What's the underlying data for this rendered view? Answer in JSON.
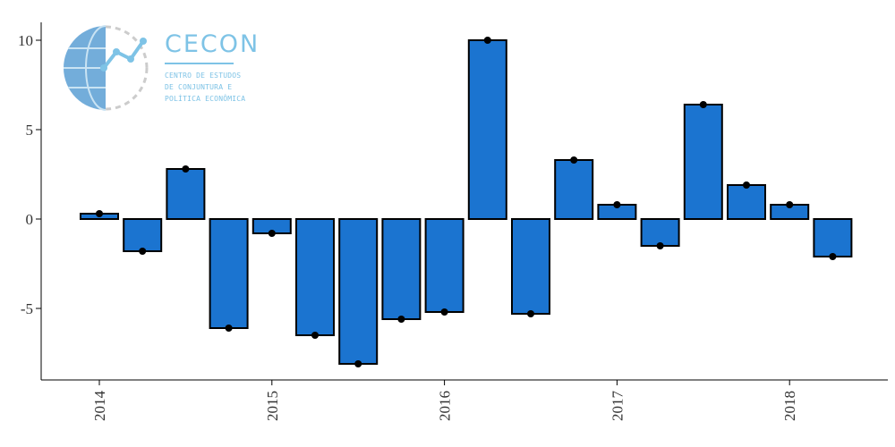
{
  "logo": {
    "title": "CECON",
    "line1": "CENTRO DE ESTUDOS",
    "line2": "DE CONJUNTURA E",
    "line3": "POLÍTICA ECONÔMICA"
  },
  "colors": {
    "bar_fill": "#1b74d0",
    "bar_stroke": "#000000",
    "logo_accent": "#7ec3e6",
    "logo_globe": "#5b9fd3"
  },
  "chart_data": {
    "type": "bar",
    "x_tick_labels": [
      "2014",
      "2015",
      "2016",
      "2017",
      "2018"
    ],
    "x_tick_positions": [
      0,
      4,
      8,
      12,
      16
    ],
    "values": [
      0.3,
      -1.8,
      2.8,
      -6.1,
      -0.8,
      -6.5,
      -8.1,
      -5.6,
      -5.2,
      10.0,
      -5.3,
      3.3,
      0.8,
      -1.5,
      6.4,
      1.9,
      0.8,
      -2.1
    ],
    "y_ticks": [
      -5,
      0,
      5,
      10
    ],
    "y_tick_labels": [
      "-5",
      "0",
      "5",
      "10"
    ],
    "ylim": [
      -9,
      10
    ],
    "xlabel": "",
    "ylabel": "",
    "title": "",
    "grid": false,
    "legend": "none"
  }
}
